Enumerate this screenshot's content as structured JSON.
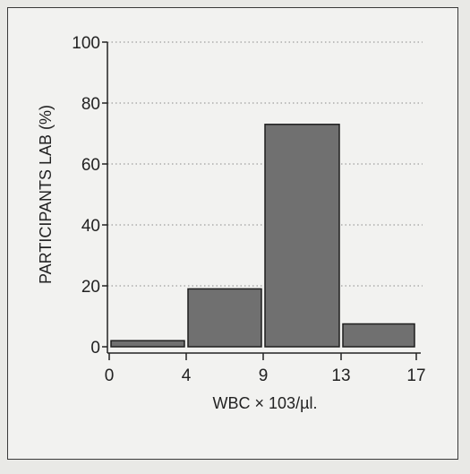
{
  "chart_data": {
    "type": "bar",
    "bins": [
      {
        "x0": 0,
        "x1": 4,
        "value": 2
      },
      {
        "x0": 4,
        "x1": 9,
        "value": 19
      },
      {
        "x0": 9,
        "x1": 13,
        "value": 73
      },
      {
        "x0": 13,
        "x1": 17,
        "value": 7.5
      }
    ],
    "x_ticks": [
      "0",
      "4",
      "9",
      "13",
      "17"
    ],
    "y_ticks": [
      "0",
      "20",
      "40",
      "60",
      "80",
      "100"
    ],
    "xlabel": "WBC × 103/µl.",
    "ylabel": "PARTICIPANTS LAB  (%)",
    "ylim": [
      0,
      100
    ],
    "grid": "dotted horizontal",
    "bar_color": "#707070"
  }
}
